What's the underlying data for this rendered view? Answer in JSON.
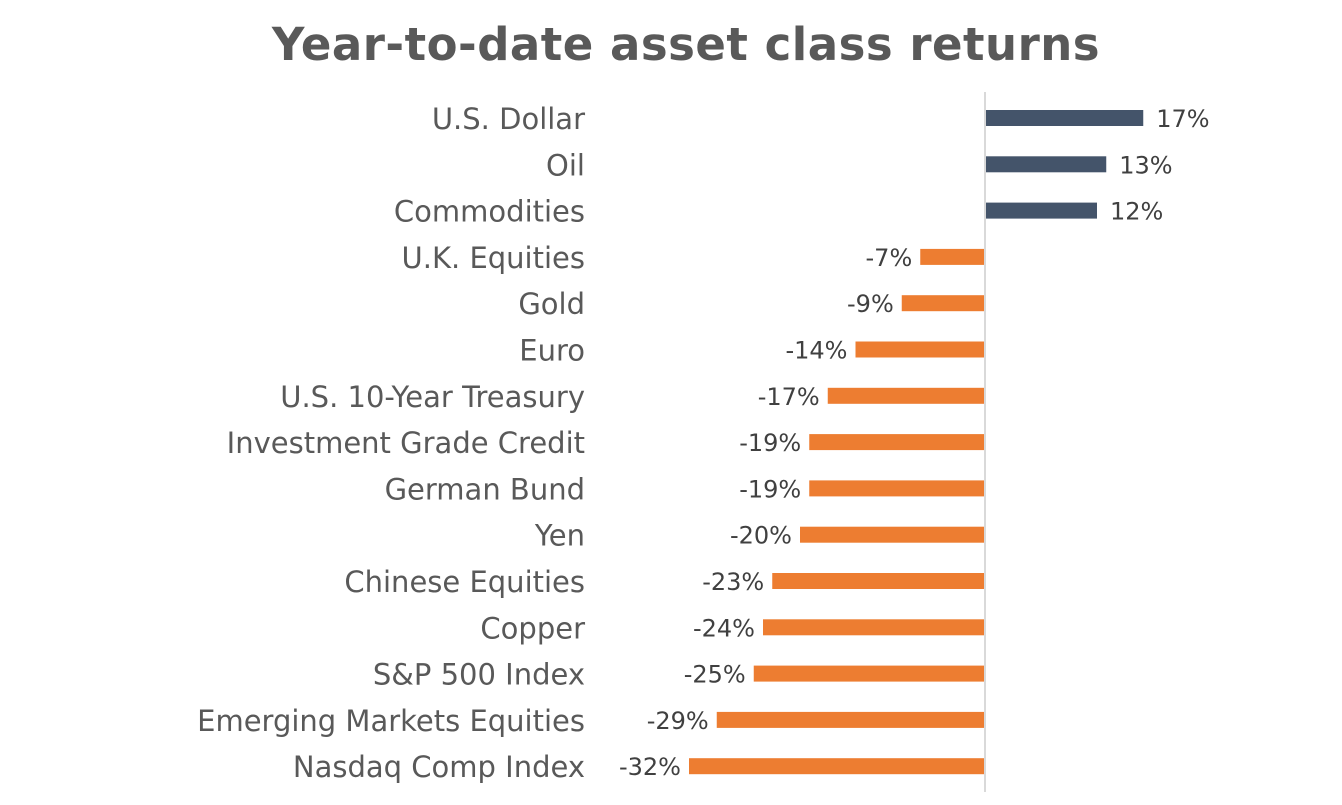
{
  "chart_data": {
    "type": "bar",
    "orientation": "horizontal",
    "title": "Year-to-date asset class returns",
    "categories": [
      "U.S. Dollar",
      "Oil",
      "Commodities",
      "U.K. Equities",
      "Gold",
      "Euro",
      "U.S. 10-Year Treasury",
      "Investment Grade Credit",
      "German Bund",
      "Yen",
      "Chinese Equities",
      "Copper",
      "S&P 500 Index",
      "Emerging Markets Equities",
      "Nasdaq Comp Index"
    ],
    "values": [
      17,
      13,
      12,
      -7,
      -9,
      -14,
      -17,
      -19,
      -19,
      -20,
      -23,
      -24,
      -25,
      -29,
      -32
    ],
    "data_labels": [
      "17%",
      "13%",
      "12%",
      "-7%",
      "-9%",
      "-14%",
      "-17%",
      "-19%",
      "-19%",
      "-20%",
      "-23%",
      "-24%",
      "-25%",
      "-29%",
      "-32%"
    ],
    "value_unit": "%",
    "colors": {
      "positive": "#44546a",
      "negative": "#ed7d31",
      "axis": "#d9d9d9"
    },
    "xlabel": "",
    "ylabel": "",
    "grid": false,
    "legend": "none"
  }
}
